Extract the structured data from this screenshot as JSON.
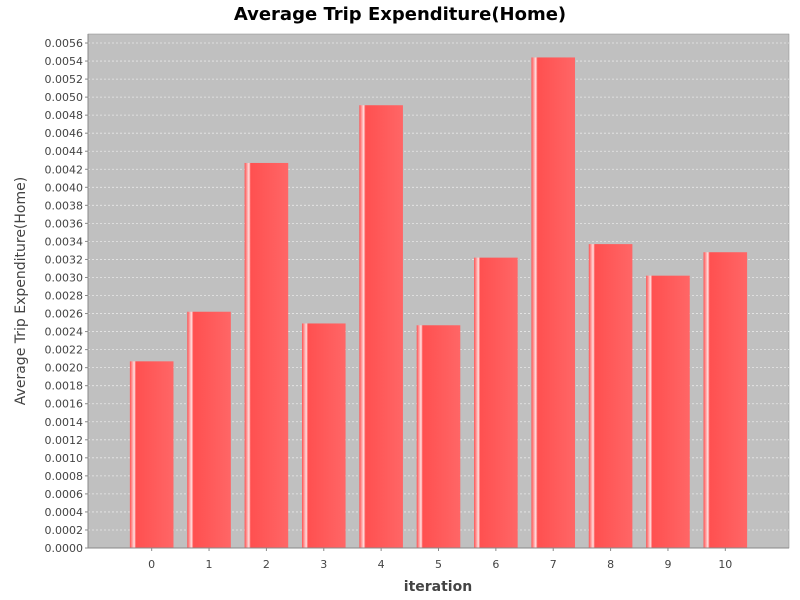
{
  "chart_data": {
    "type": "bar",
    "title": "Average Trip Expenditure(Home)",
    "xlabel": "iteration",
    "ylabel": "Average Trip Expenditure(Home)",
    "categories": [
      "0",
      "1",
      "2",
      "3",
      "4",
      "5",
      "6",
      "7",
      "8",
      "9",
      "10"
    ],
    "values": [
      0.00207,
      0.00262,
      0.00427,
      0.00249,
      0.00491,
      0.00247,
      0.00322,
      0.00544,
      0.00337,
      0.00302,
      0.00328
    ],
    "ylim": [
      0,
      0.0057
    ],
    "yticks": [
      "0.0000",
      "0.0002",
      "0.0004",
      "0.0006",
      "0.0008",
      "0.0010",
      "0.0012",
      "0.0014",
      "0.0016",
      "0.0018",
      "0.0020",
      "0.0022",
      "0.0024",
      "0.0026",
      "0.0028",
      "0.0030",
      "0.0032",
      "0.0034",
      "0.0036",
      "0.0038",
      "0.0040",
      "0.0042",
      "0.0044",
      "0.0046",
      "0.0048",
      "0.0050",
      "0.0052",
      "0.0054",
      "0.0056"
    ],
    "grid": true,
    "legend": "none",
    "colors": {
      "plot_background": "#c0c0c0",
      "bar": "#ff5555",
      "bar_highlight": "#ffffff",
      "grid": "#e8e8e8",
      "axis": "#888888",
      "text": "#444444"
    }
  }
}
